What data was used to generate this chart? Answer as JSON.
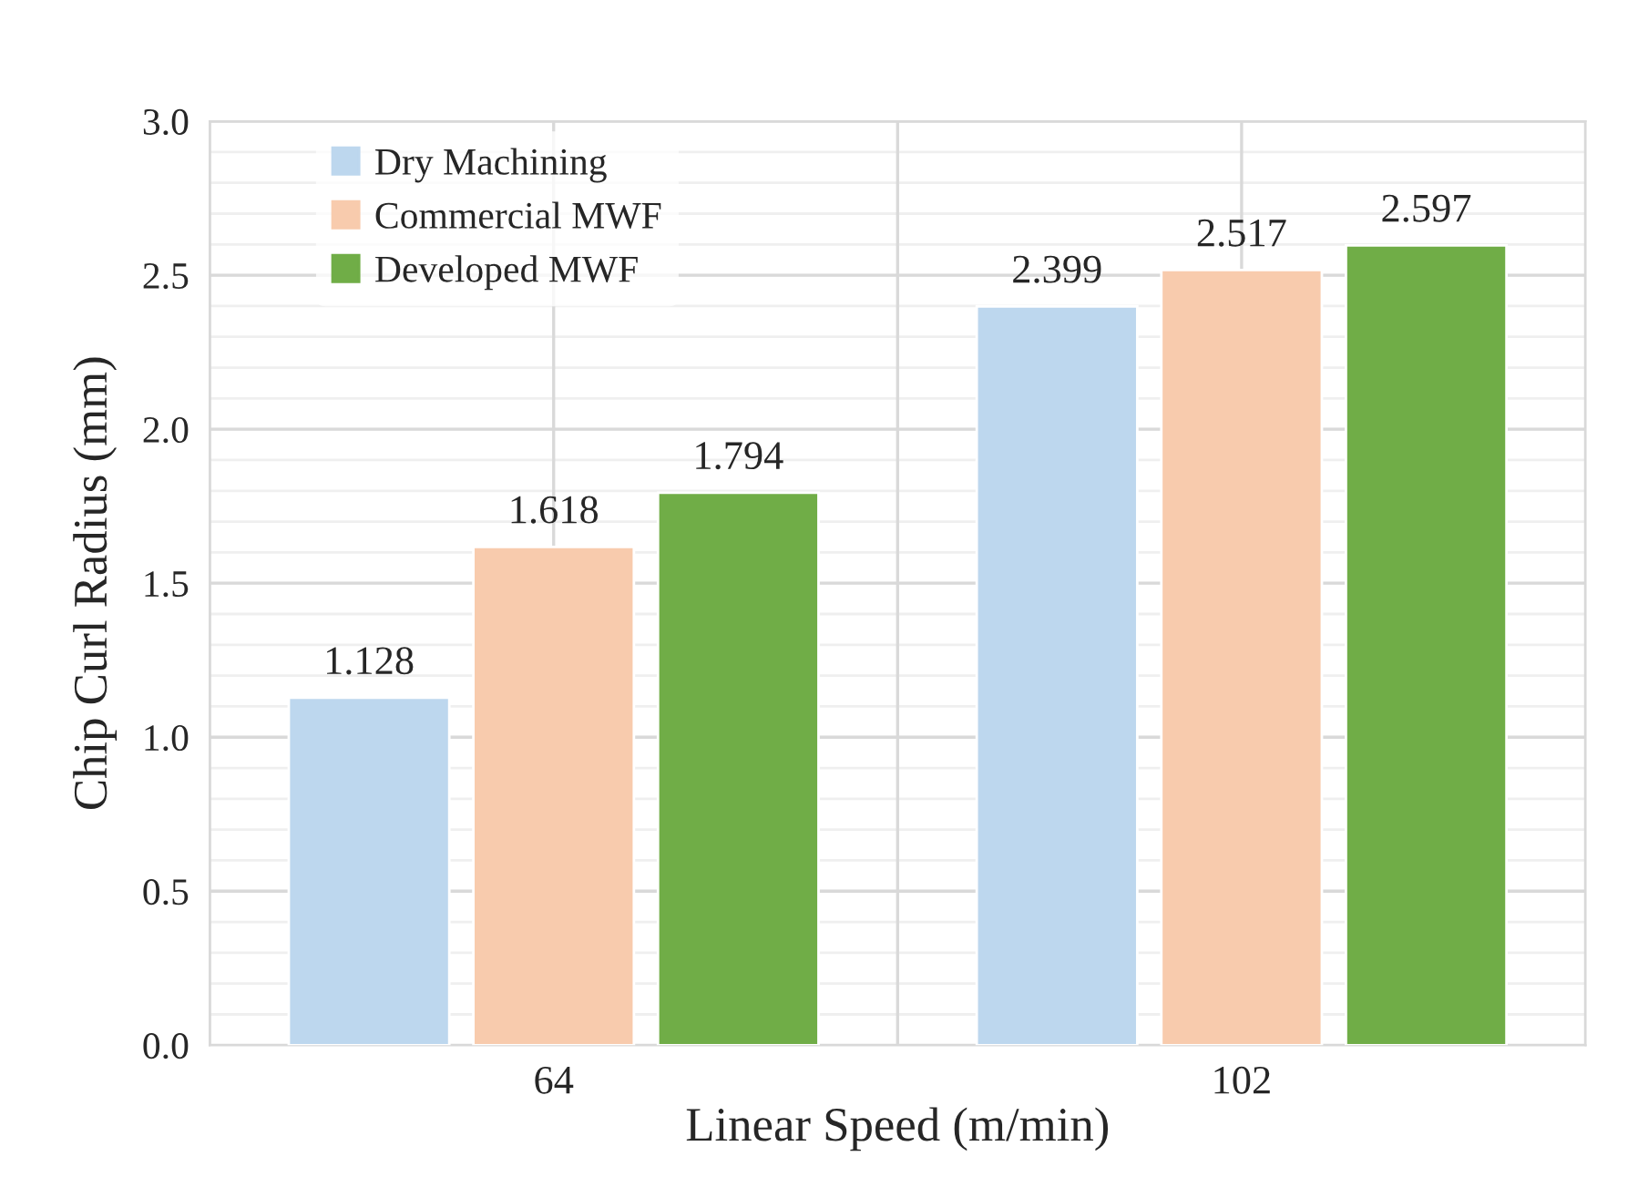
{
  "chart_data": {
    "type": "bar",
    "xlabel": "Linear Speed (m/min)",
    "ylabel": "Chip Curl Radius (mm)",
    "categories": [
      "64",
      "102"
    ],
    "series": [
      {
        "name": "Dry Machining",
        "color": "#bdd7ee",
        "values": [
          1.128,
          2.399
        ]
      },
      {
        "name": "Commercial MWF",
        "color": "#f8cbad",
        "values": [
          1.618,
          2.517
        ]
      },
      {
        "name": "Developed MWF",
        "color": "#70ad47",
        "values": [
          1.794,
          2.597
        ]
      }
    ],
    "ylim": [
      0,
      3.0
    ],
    "yticks": [
      {
        "value": 0,
        "label": "0.0"
      },
      {
        "value": 0.5,
        "label": "0.5"
      },
      {
        "value": 1.0,
        "label": "1.0"
      },
      {
        "value": 1.5,
        "label": "1.5"
      },
      {
        "value": 2.0,
        "label": "2.0"
      },
      {
        "value": 2.5,
        "label": "2.5"
      },
      {
        "value": 3.0,
        "label": "3.0"
      }
    ],
    "grid": true,
    "legend": "top left",
    "data_labels": true
  }
}
